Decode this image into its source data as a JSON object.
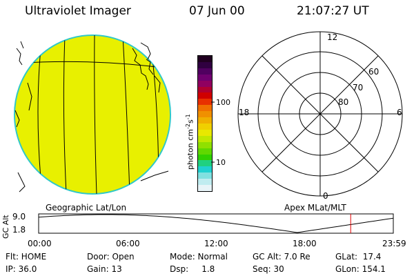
{
  "header": {
    "instrument": "Ultraviolet Imager",
    "date": "07 Jun 00",
    "time": "21:07:27 UT"
  },
  "colorbar": {
    "unit_label": "photon cm",
    "unit_sup1": "-2",
    "unit_mid": "s",
    "unit_sup2": "-1",
    "tick_high": "100",
    "tick_low": "10",
    "colors": [
      "#200020",
      "#300040",
      "#500060",
      "#700070",
      "#900060",
      "#b00030",
      "#d00000",
      "#e83000",
      "#f07000",
      "#f09000",
      "#f0b000",
      "#f0d000",
      "#e8e800",
      "#c0e800",
      "#90e000",
      "#60d800",
      "#30d000",
      "#20d080",
      "#20d0d0",
      "#80e0e0",
      "#c0ecf0",
      "#e8f4f8"
    ]
  },
  "polar": {
    "mlt_top": "12",
    "mlt_left": "18",
    "mlt_right": "6",
    "mlt_bottom": "0",
    "lat_60": "60",
    "lat_70": "70",
    "lat_80": "80"
  },
  "map_label": "Geographic Lat/Lon",
  "polar_label": "Apex MLat/MLT",
  "altitude_plot": {
    "ylabel": "GC Alt",
    "ymax_label": "9.0",
    "ymin_label": "1.8",
    "x_ticks": [
      "00:00",
      "06:00",
      "12:00",
      "18:00",
      "23:59"
    ],
    "current_time_marker": "21:07",
    "trace_color": "#000000",
    "marker_color": "#e00000"
  },
  "info": {
    "flt": "Flt: HOME",
    "ip": "IP: 36.0",
    "door": "Door: Open",
    "gain": "Gain: 13",
    "mode": "Mode: Normal",
    "dsp": "Dsp:     1.8",
    "gcalt": "GC Alt: 7.0 Re",
    "seq": "Seq: 30",
    "glat": "GLat:  17.4",
    "glon": "GLon: 154.1"
  }
}
